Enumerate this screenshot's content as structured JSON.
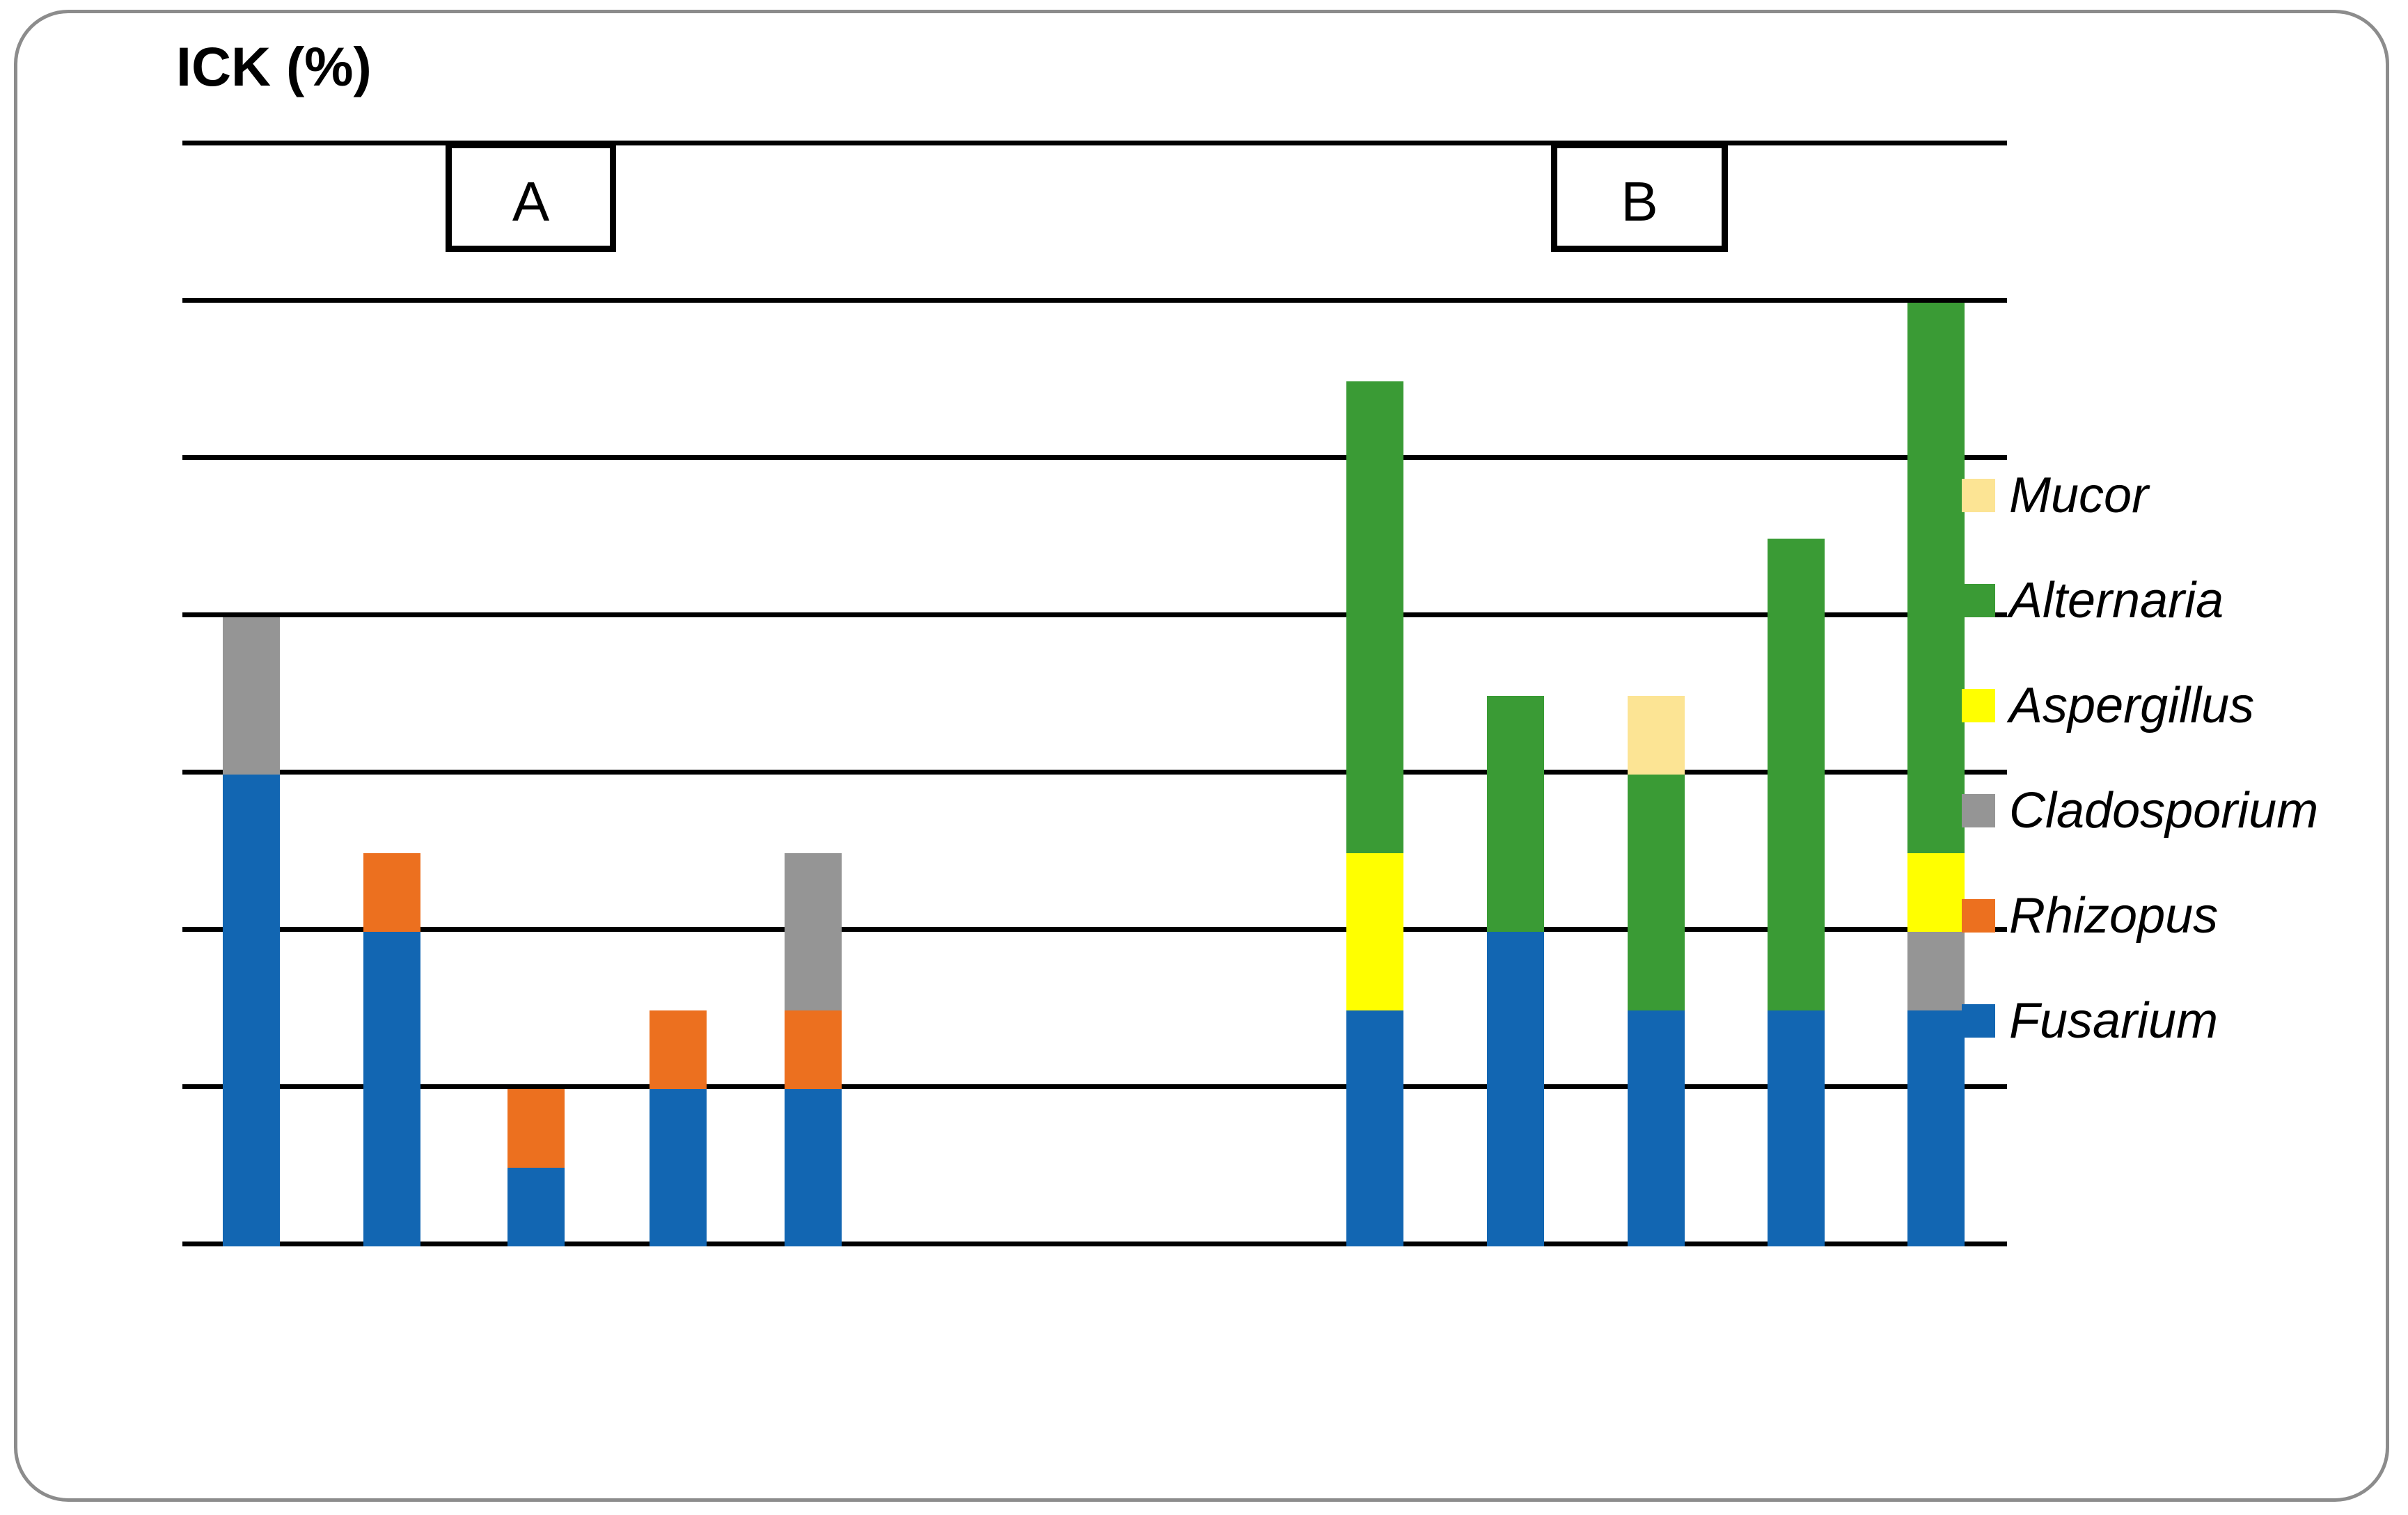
{
  "title": "ICK (%)",
  "figure": {
    "border_color": "#8c8c8c",
    "background_color": "#ffffff",
    "gridline_color": "#000000"
  },
  "legend": [
    {
      "label": "Mucor",
      "color": "#FCE494"
    },
    {
      "label": "Alternaria",
      "color": "#3A9B35"
    },
    {
      "label": "Aspergillus",
      "color": "#FFFF00"
    },
    {
      "label": "Cladosporium",
      "color": "#959595"
    },
    {
      "label": "Rhizopus",
      "color": "#EC701F"
    },
    {
      "label": "Fusarium",
      "color": "#1266B2"
    }
  ],
  "chart_data": {
    "type": "bar",
    "stacked": true,
    "title": "ICK (%)",
    "ylabel": "ICK (%)",
    "xlabel": "",
    "ylim": [
      0,
      70
    ],
    "gridline_percents": [
      0,
      10,
      20,
      30,
      40,
      50,
      60,
      70
    ],
    "grid": "horizontal",
    "legend_position": "right",
    "axis_tick_labels": "none",
    "groups": [
      {
        "label": "A",
        "bars": [
          {
            "total": 40,
            "segments": [
              {
                "genus": "Fusarium",
                "value": 30
              },
              {
                "genus": "Cladosporium",
                "value": 10
              }
            ]
          },
          {
            "total": 25,
            "segments": [
              {
                "genus": "Fusarium",
                "value": 20
              },
              {
                "genus": "Rhizopus",
                "value": 5
              }
            ]
          },
          {
            "total": 10,
            "segments": [
              {
                "genus": "Fusarium",
                "value": 5
              },
              {
                "genus": "Rhizopus",
                "value": 5
              }
            ]
          },
          {
            "total": 15,
            "segments": [
              {
                "genus": "Fusarium",
                "value": 10
              },
              {
                "genus": "Rhizopus",
                "value": 5
              }
            ]
          },
          {
            "total": 25,
            "segments": [
              {
                "genus": "Fusarium",
                "value": 10
              },
              {
                "genus": "Rhizopus",
                "value": 5
              },
              {
                "genus": "Cladosporium",
                "value": 10
              }
            ]
          }
        ]
      },
      {
        "label": "B",
        "bars": [
          {
            "total": 55,
            "segments": [
              {
                "genus": "Fusarium",
                "value": 15
              },
              {
                "genus": "Aspergillus",
                "value": 10
              },
              {
                "genus": "Alternaria",
                "value": 30
              }
            ]
          },
          {
            "total": 35,
            "segments": [
              {
                "genus": "Fusarium",
                "value": 20
              },
              {
                "genus": "Alternaria",
                "value": 15
              }
            ]
          },
          {
            "total": 35,
            "segments": [
              {
                "genus": "Fusarium",
                "value": 15
              },
              {
                "genus": "Alternaria",
                "value": 15
              },
              {
                "genus": "Mucor",
                "value": 5
              }
            ]
          },
          {
            "total": 45,
            "segments": [
              {
                "genus": "Fusarium",
                "value": 15
              },
              {
                "genus": "Alternaria",
                "value": 30
              }
            ]
          },
          {
            "total": 60,
            "segments": [
              {
                "genus": "Fusarium",
                "value": 15
              },
              {
                "genus": "Cladosporium",
                "value": 5
              },
              {
                "genus": "Aspergillus",
                "value": 5
              },
              {
                "genus": "Alternaria",
                "value": 35
              }
            ]
          }
        ]
      }
    ]
  }
}
